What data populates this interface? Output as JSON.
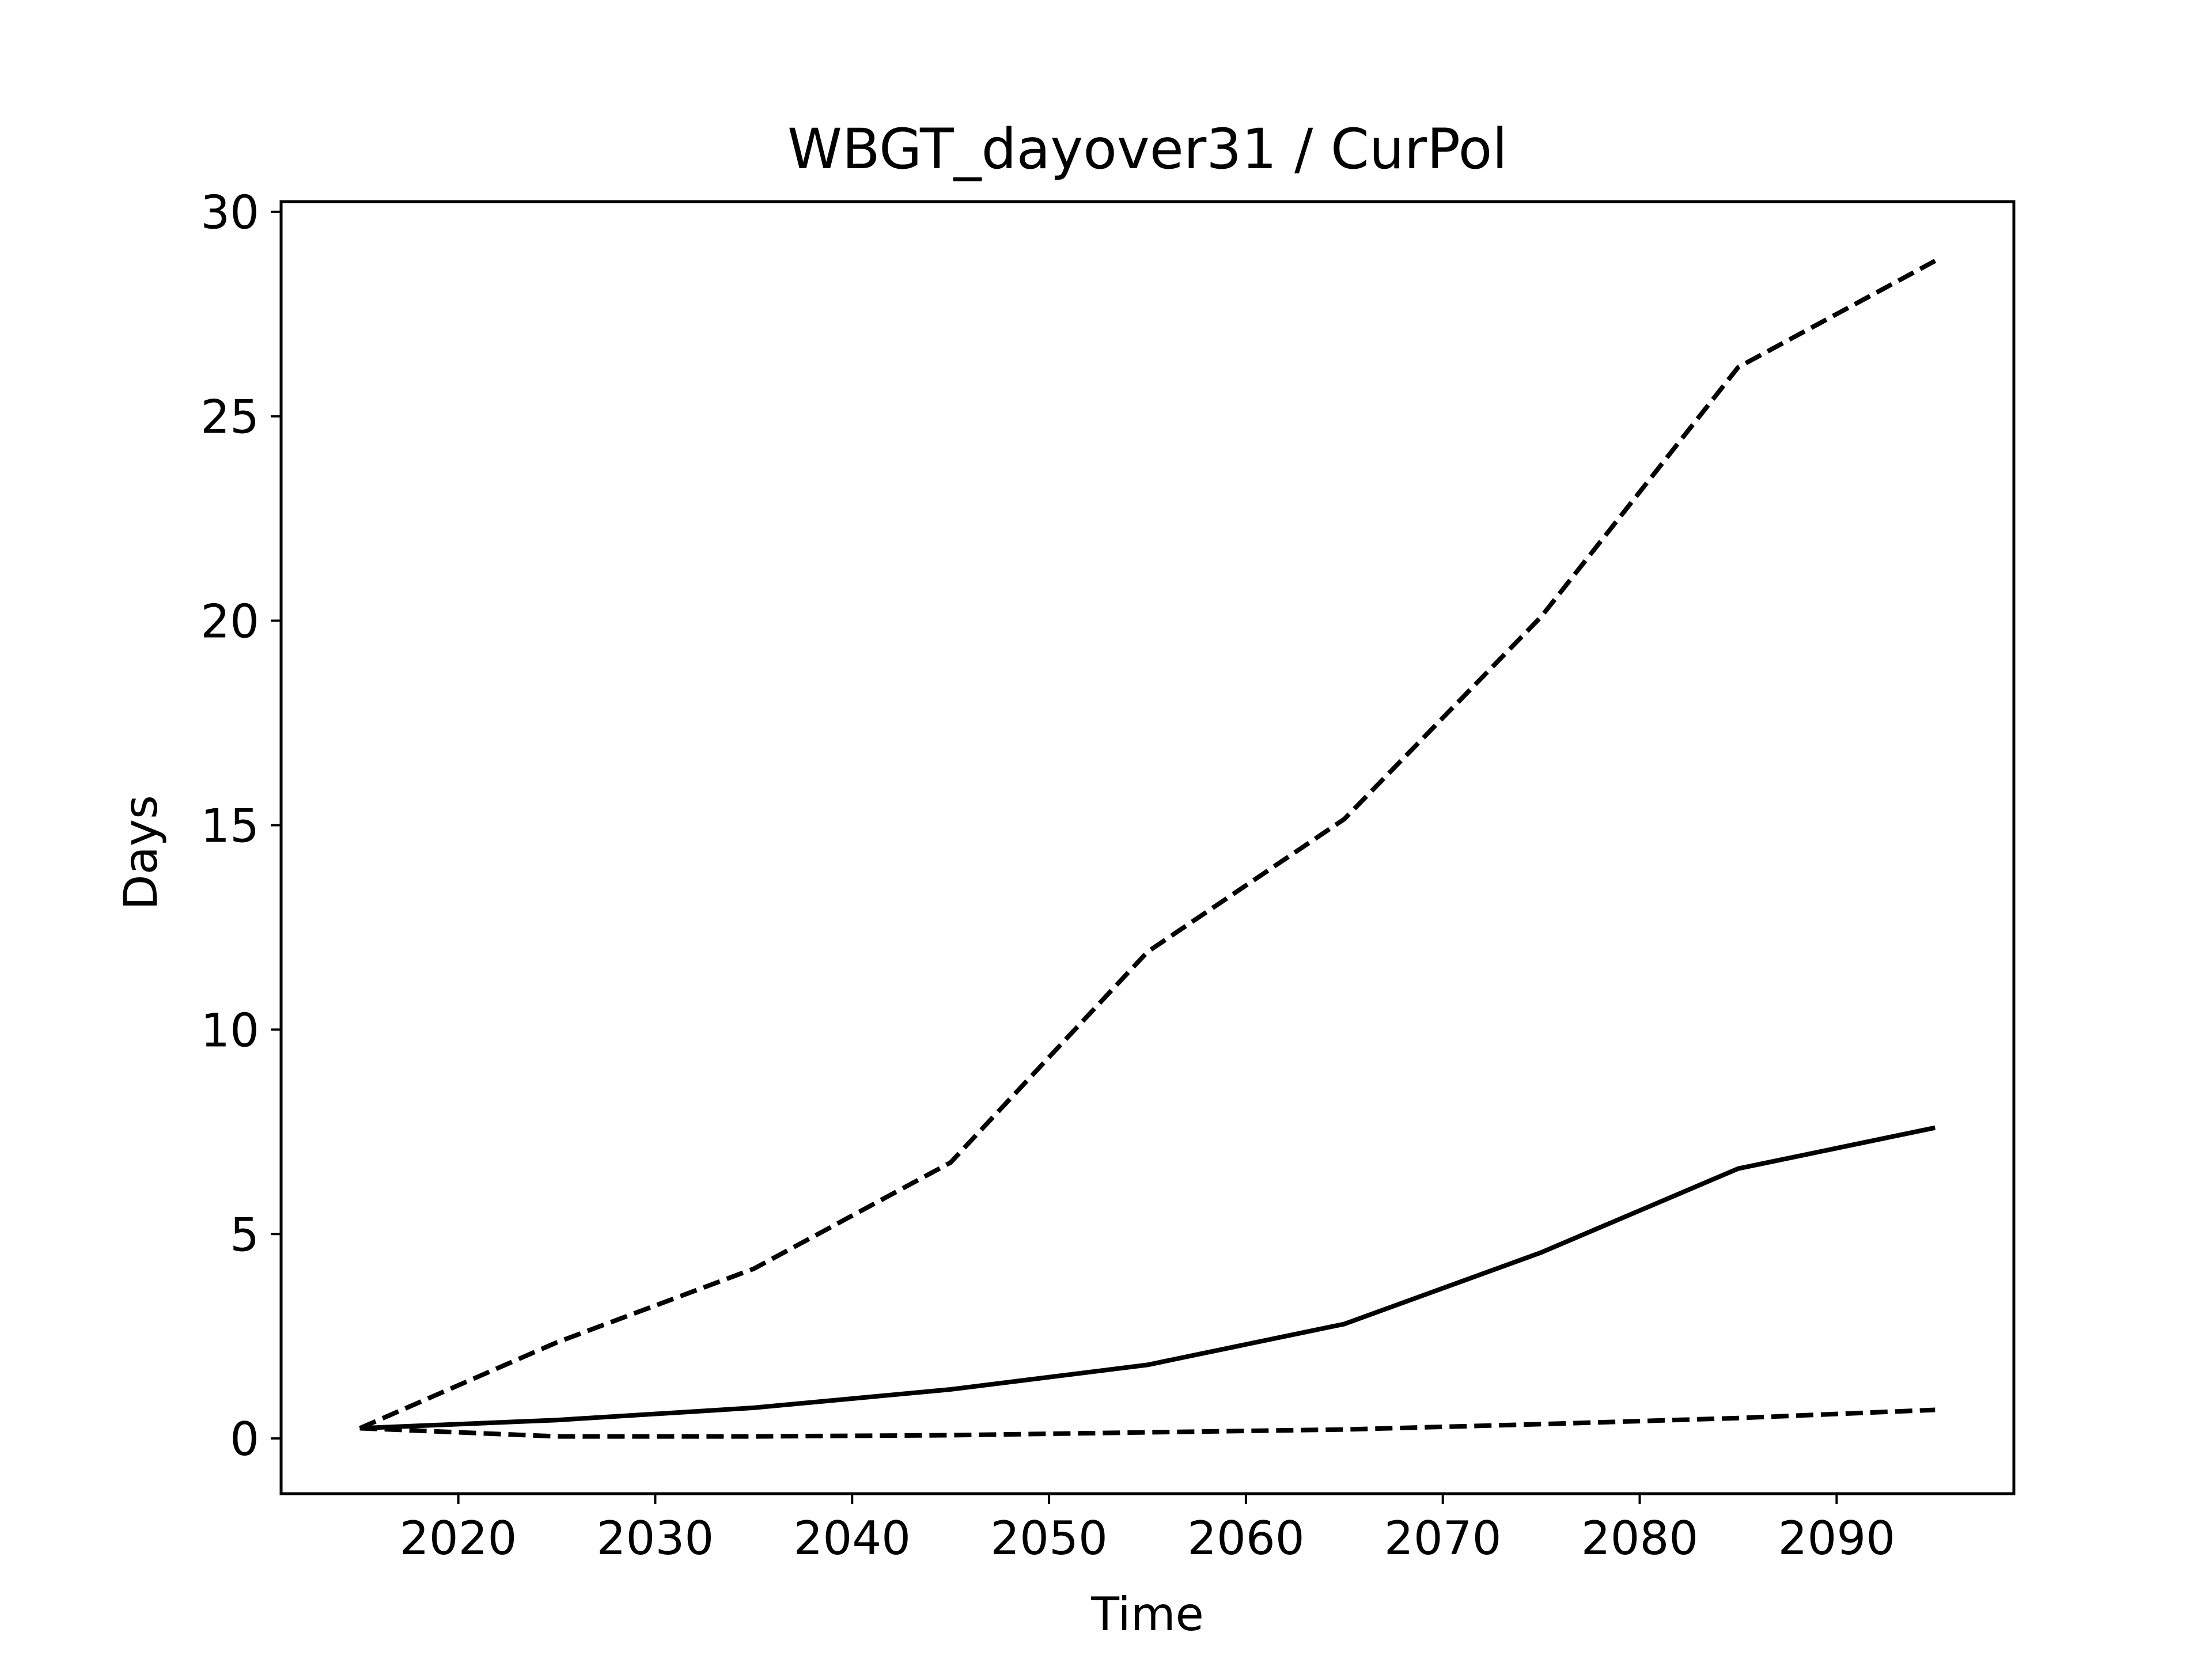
{
  "chart_data": {
    "type": "line",
    "title": "WBGT_dayover31 / CurPol",
    "xlabel": "Time",
    "ylabel": "Days",
    "xlim": [
      2011,
      2099
    ],
    "ylim": [
      -1.35,
      30.25
    ],
    "x_ticks": [
      2020,
      2030,
      2040,
      2050,
      2060,
      2070,
      2080,
      2090
    ],
    "y_ticks": [
      0,
      5,
      10,
      15,
      20,
      25,
      30
    ],
    "grid": false,
    "line_color": "#000000",
    "series": [
      {
        "style": "dashed",
        "x": [
          2015,
          2025,
          2035,
          2045,
          2055,
          2065,
          2075,
          2085,
          2095
        ],
        "y": [
          0.25,
          2.35,
          4.15,
          6.75,
          11.9,
          15.15,
          20.1,
          26.2,
          28.8
        ]
      },
      {
        "style": "solid",
        "x": [
          2015,
          2025,
          2035,
          2045,
          2055,
          2065,
          2075,
          2085,
          2095
        ],
        "y": [
          0.25,
          0.45,
          0.75,
          1.2,
          1.8,
          2.8,
          4.55,
          6.6,
          7.6
        ]
      },
      {
        "style": "dashed",
        "x": [
          2015,
          2025,
          2035,
          2045,
          2055,
          2065,
          2075,
          2085,
          2095
        ],
        "y": [
          0.25,
          0.05,
          0.05,
          0.08,
          0.15,
          0.22,
          0.35,
          0.5,
          0.7
        ]
      }
    ]
  }
}
